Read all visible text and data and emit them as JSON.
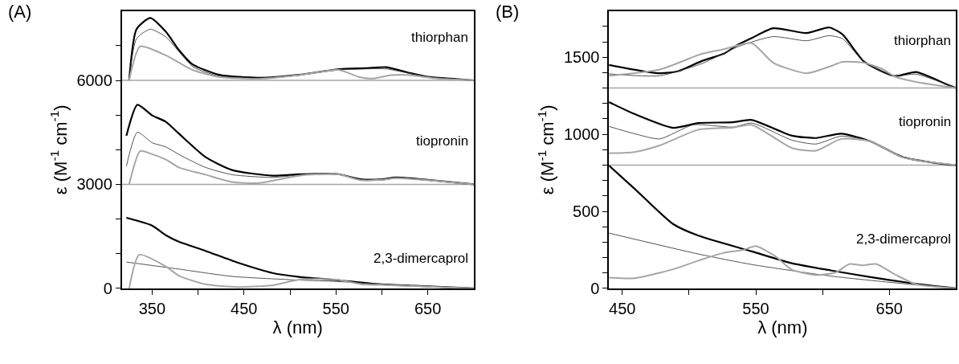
{
  "chart_data": [
    {
      "type": "line",
      "xlabel": "λ (nm)",
      "ylabel": "ε (M$^{-1}$ cm$^{-1}$)",
      "xlim": [
        317,
        700
      ],
      "ylim": [
        0,
        8000
      ],
      "xticks": [
        350,
        {
          "value": 400,
          "label": null
        },
        450,
        {
          "value": 500,
          "label": null
        },
        550,
        {
          "value": 600,
          "label": null
        },
        650
      ],
      "yticks": [
        0,
        {
          "value": 1000,
          "label": null
        },
        {
          "value": 2000,
          "label": null
        },
        3000,
        {
          "value": 4000,
          "label": null
        },
        {
          "value": 5000,
          "label": null
        },
        6000,
        {
          "value": 7000,
          "label": null
        }
      ],
      "grid": false,
      "marker": "none",
      "line_style": "solid",
      "ref_lines": [
        {
          "axis": "y",
          "value": 3000,
          "color": "#a6a6a6"
        },
        {
          "axis": "y",
          "value": 6000,
          "color": "#a6a6a6"
        }
      ],
      "annotations": [
        "(A)",
        "thiorphan",
        "tiopronin",
        "2,3-dimercaprol"
      ],
      "series": [
        {
          "color": "#000000",
          "x": [
            325,
            333,
            348,
            365,
            379,
            394,
            423,
            466,
            510,
            553,
            582,
            605,
            630,
            650,
            675,
            700
          ],
          "values": [
            6000,
            7475,
            7800,
            7400,
            6880,
            6460,
            6160,
            6075,
            6160,
            6325,
            6350,
            6380,
            6215,
            6100,
            6050,
            6000
          ]
        },
        {
          "color": "#404040",
          "x": [
            325,
            333,
            348,
            365,
            380,
            395,
            423,
            466,
            510,
            553,
            582,
            605,
            630,
            650,
            700
          ],
          "values": [
            6000,
            7200,
            7475,
            7250,
            6800,
            6380,
            6120,
            6060,
            6150,
            6300,
            6330,
            6330,
            6200,
            6100,
            6000
          ]
        },
        {
          "color": "#a6a6a6",
          "x": [
            325,
            337,
            365,
            380,
            395,
            423,
            466,
            510,
            553,
            575,
            590,
            610,
            630,
            660,
            700
          ],
          "values": [
            6000,
            6980,
            6720,
            6500,
            6290,
            6100,
            6040,
            6150,
            6300,
            6100,
            6050,
            6150,
            6150,
            6050,
            6000
          ]
        },
        {
          "color": "#000000",
          "x": [
            322,
            334,
            350,
            365,
            379,
            408,
            437,
            481,
            510,
            551,
            577,
            600,
            615,
            650,
            700
          ],
          "values": [
            4400,
            5295,
            4990,
            4805,
            4467,
            3790,
            3413,
            3250,
            3290,
            3300,
            3150,
            3150,
            3200,
            3130,
            3000
          ]
        },
        {
          "color": "#404040",
          "x": [
            322,
            334,
            350,
            365,
            379,
            408,
            437,
            481,
            510,
            551,
            577,
            600,
            615,
            650,
            700
          ],
          "values": [
            3525,
            4505,
            4200,
            4080,
            3865,
            3490,
            3280,
            3200,
            3270,
            3300,
            3130,
            3120,
            3180,
            3120,
            3000
          ]
        },
        {
          "color": "#a6a6a6",
          "x": [
            325,
            337,
            350,
            365,
            379,
            408,
            437,
            466,
            510,
            551,
            577,
            600,
            615,
            650,
            700
          ],
          "values": [
            3000,
            3960,
            3870,
            3715,
            3490,
            3280,
            3070,
            3040,
            3250,
            3300,
            3120,
            3130,
            3180,
            3120,
            3000
          ]
        },
        {
          "color": "#000000",
          "x": [
            322,
            350,
            365,
            379,
            408,
            443,
            481,
            510,
            551,
            597,
            650,
            700
          ],
          "values": [
            2037,
            1812,
            1534,
            1346,
            1083,
            745,
            444,
            331,
            240,
            120,
            60,
            0
          ]
        },
        {
          "color": "#404040",
          "x": [
            322,
            379,
            437,
            510,
            551,
            600,
            650,
            700
          ],
          "values": [
            760,
            557,
            346,
            240,
            200,
            120,
            60,
            0
          ]
        },
        {
          "color": "#a6a6a6",
          "x": [
            325,
            336,
            365,
            379,
            408,
            443,
            481,
            510,
            551,
            577,
            600,
            650,
            700
          ],
          "values": [
            0,
            970,
            632,
            368,
            120,
            40,
            90,
            255,
            255,
            120,
            100,
            50,
            0
          ]
        }
      ]
    },
    {
      "type": "line",
      "xlabel": "λ (nm)",
      "ylabel": "ε (M$^{-1}$ cm$^{-1}$)",
      "xlim": [
        440,
        700
      ],
      "ylim": [
        0,
        1800
      ],
      "xticks": [
        450,
        {
          "value": 500,
          "label": null
        },
        550,
        {
          "value": 600,
          "label": null
        },
        650
      ],
      "yticks": [
        0,
        {
          "value": 100,
          "label": null
        },
        {
          "value": 200,
          "label": null
        },
        {
          "value": 300,
          "label": null
        },
        {
          "value": 400,
          "label": null
        },
        500,
        {
          "value": 600,
          "label": null
        },
        {
          "value": 700,
          "label": null
        },
        {
          "value": 800,
          "label": null
        },
        {
          "value": 900,
          "label": null
        },
        1000,
        {
          "value": 1100,
          "label": null
        },
        {
          "value": 1200,
          "label": null
        },
        {
          "value": 1300,
          "label": null
        },
        {
          "value": 1400,
          "label": null
        },
        1500,
        {
          "value": 1600,
          "label": null
        },
        {
          "value": 1700,
          "label": null
        }
      ],
      "grid": false,
      "marker": "none",
      "line_style": "solid",
      "ref_lines": [
        {
          "axis": "y",
          "value": 800,
          "color": "#a6a6a6"
        },
        {
          "axis": "y",
          "value": 1300,
          "color": "#a6a6a6"
        }
      ],
      "annotations": [
        "(B)",
        "thiorphan",
        "tiopronin",
        "2,3-dimercaprol"
      ],
      "series": [
        {
          "color": "#000000",
          "x": [
            440,
            478,
            492,
            510,
            526,
            537,
            547,
            563,
            588,
            605,
            615,
            631,
            654,
            670,
            693,
            700
          ],
          "values": [
            1450,
            1396,
            1410,
            1477,
            1523,
            1583,
            1625,
            1688,
            1657,
            1693,
            1648,
            1472,
            1378,
            1404,
            1324,
            1300
          ]
        },
        {
          "color": "#404040",
          "x": [
            440,
            478,
            510,
            537,
            563,
            588,
            605,
            615,
            631,
            654,
            670,
            700
          ],
          "values": [
            1392,
            1380,
            1460,
            1570,
            1634,
            1607,
            1640,
            1620,
            1470,
            1380,
            1390,
            1300
          ]
        },
        {
          "color": "#a6a6a6",
          "x": [
            440,
            478,
            510,
            526,
            547,
            563,
            588,
            605,
            615,
            631,
            645,
            654,
            670,
            700
          ],
          "values": [
            1380,
            1420,
            1523,
            1552,
            1591,
            1464,
            1396,
            1439,
            1470,
            1464,
            1423,
            1375,
            1340,
            1300
          ]
        },
        {
          "color": "#000000",
          "x": [
            440,
            459,
            488,
            507,
            533,
            547,
            577,
            595,
            614,
            636,
            660,
            693,
            700
          ],
          "values": [
            1209,
            1132,
            1042,
            1073,
            1078,
            1093,
            991,
            976,
            1004,
            954,
            852,
            804,
            800
          ]
        },
        {
          "color": "#404040",
          "x": [
            440,
            459,
            478,
            503,
            533,
            547,
            577,
            595,
            614,
            636,
            660,
            700
          ],
          "values": [
            1051,
            1004,
            970,
            1061,
            1047,
            1073,
            962,
            937,
            988,
            954,
            852,
            800
          ]
        },
        {
          "color": "#a6a6a6",
          "x": [
            440,
            459,
            478,
            507,
            533,
            547,
            577,
            595,
            614,
            636,
            660,
            700
          ],
          "values": [
            877,
            885,
            928,
            1030,
            1044,
            1061,
            911,
            894,
            970,
            954,
            850,
            800
          ]
        },
        {
          "color": "#000000",
          "x": [
            440,
            459,
            488,
            507,
            547,
            577,
            606,
            636,
            665,
            700
          ],
          "values": [
            797,
            648,
            418,
            342,
            240,
            163,
            117,
            73,
            36,
            0
          ]
        },
        {
          "color": "#404040",
          "x": [
            440,
            507,
            547,
            606,
            665,
            700
          ],
          "values": [
            359,
            223,
            155,
            80,
            27,
            0
          ]
        },
        {
          "color": "#a6a6a6",
          "x": [
            440,
            459,
            488,
            507,
            526,
            540,
            550,
            565,
            577,
            595,
            610,
            620,
            630,
            640,
            655,
            670,
            700
          ],
          "values": [
            70,
            66,
            124,
            180,
            231,
            248,
            274,
            206,
            121,
            87,
            104,
            158,
            150,
            158,
            87,
            27,
            0
          ]
        }
      ]
    }
  ]
}
